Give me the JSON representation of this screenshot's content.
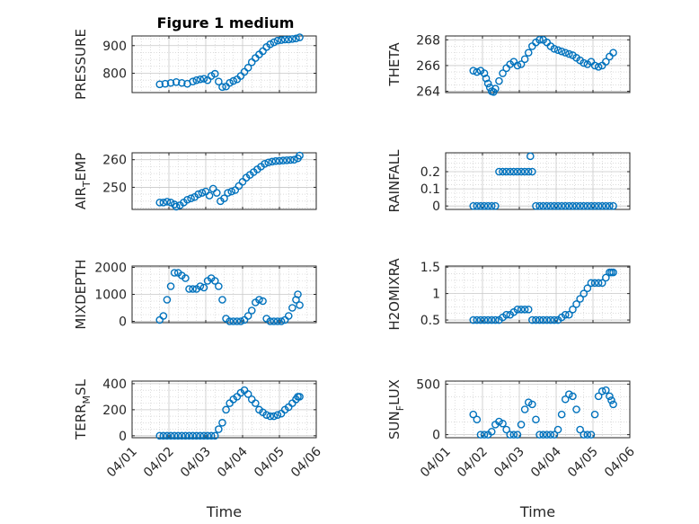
{
  "figure_title": "Figure 1 medium",
  "colors": {
    "marker": "#0072BD",
    "axes": "#262626",
    "grid": "#c8c8c8",
    "plot_bg": "#ffffff"
  },
  "chart_data": [
    {
      "type": "scatter",
      "ylabel": "PRESSURE",
      "ylim": [
        730,
        935
      ],
      "yticks": [
        800,
        900
      ],
      "xlim": [
        1,
        6
      ],
      "xticks": [
        1,
        2,
        3,
        4,
        5,
        6
      ],
      "xticklabels": [
        "04/01",
        "04/02",
        "04/03",
        "04/04",
        "04/05",
        "04/06"
      ],
      "xlabel": "",
      "grid": true,
      "marker": "circle",
      "x": [
        1.75,
        1.9,
        2.05,
        2.2,
        2.35,
        2.5,
        2.65,
        2.75,
        2.85,
        2.95,
        3.05,
        3.15,
        3.25,
        3.35,
        3.45,
        3.55,
        3.65,
        3.75,
        3.85,
        3.95,
        4.05,
        4.15,
        4.25,
        4.35,
        4.45,
        4.55,
        4.65,
        4.75,
        4.85,
        4.95,
        5.05,
        5.15,
        5.25,
        5.35,
        5.45,
        5.55
      ],
      "y": [
        760,
        762,
        765,
        768,
        765,
        762,
        770,
        775,
        778,
        780,
        775,
        790,
        798,
        770,
        750,
        752,
        765,
        772,
        778,
        790,
        805,
        820,
        840,
        855,
        868,
        880,
        895,
        905,
        912,
        918,
        920,
        922,
        922,
        924,
        926,
        930
      ]
    },
    {
      "type": "scatter",
      "ylabel": "THETA",
      "ylim": [
        263.9,
        268.3
      ],
      "yticks": [
        264,
        266,
        268
      ],
      "xlim": [
        1,
        6
      ],
      "xticks": [
        1,
        2,
        3,
        4,
        5,
        6
      ],
      "xticklabels": [
        "04/01",
        "04/02",
        "04/03",
        "04/04",
        "04/05",
        "04/06"
      ],
      "xlabel": "",
      "grid": true,
      "marker": "circle",
      "x": [
        1.75,
        1.85,
        1.95,
        2.05,
        2.1,
        2.15,
        2.2,
        2.25,
        2.3,
        2.35,
        2.45,
        2.55,
        2.65,
        2.75,
        2.85,
        2.95,
        3.05,
        3.15,
        3.25,
        3.35,
        3.45,
        3.55,
        3.65,
        3.75,
        3.85,
        3.95,
        4.05,
        4.15,
        4.25,
        4.35,
        4.45,
        4.55,
        4.65,
        4.75,
        4.85,
        4.95,
        5.05,
        5.15,
        5.25,
        5.35,
        5.45,
        5.55
      ],
      "y": [
        265.6,
        265.5,
        265.6,
        265.4,
        265.0,
        264.6,
        264.3,
        264.0,
        263.95,
        264.2,
        264.8,
        265.4,
        265.8,
        266.1,
        266.3,
        266.0,
        266.1,
        266.5,
        267.0,
        267.5,
        267.8,
        268.0,
        268.0,
        267.8,
        267.5,
        267.3,
        267.2,
        267.1,
        267.0,
        266.9,
        266.8,
        266.6,
        266.4,
        266.2,
        266.1,
        266.3,
        266.0,
        265.9,
        266.0,
        266.3,
        266.7,
        267.0
      ]
    },
    {
      "type": "scatter",
      "ylabel": "AIR_TEMP",
      "ylim": [
        242,
        262.5
      ],
      "yticks": [
        250,
        260
      ],
      "xlim": [
        1,
        6
      ],
      "xticks": [
        1,
        2,
        3,
        4,
        5,
        6
      ],
      "xticklabels": [
        "04/01",
        "04/02",
        "04/03",
        "04/04",
        "04/05",
        "04/06"
      ],
      "xlabel": "",
      "grid": true,
      "marker": "circle",
      "x": [
        1.75,
        1.85,
        1.95,
        2.05,
        2.15,
        2.2,
        2.3,
        2.4,
        2.5,
        2.6,
        2.7,
        2.8,
        2.9,
        3.0,
        3.1,
        3.2,
        3.3,
        3.4,
        3.5,
        3.6,
        3.7,
        3.8,
        3.9,
        4.0,
        4.1,
        4.2,
        4.3,
        4.4,
        4.5,
        4.6,
        4.7,
        4.8,
        4.9,
        5.0,
        5.1,
        5.2,
        5.3,
        5.4,
        5.5,
        5.55
      ],
      "y": [
        244.5,
        244.5,
        244.8,
        244.5,
        243.8,
        243.0,
        243.5,
        244.5,
        245.5,
        246.0,
        246.5,
        247.5,
        248.0,
        248.5,
        247.0,
        249.5,
        248.0,
        245.0,
        246.0,
        248.0,
        248.5,
        249.0,
        250.5,
        252.0,
        253.5,
        254.5,
        255.5,
        256.5,
        257.5,
        258.5,
        259.0,
        259.3,
        259.5,
        259.6,
        259.7,
        259.8,
        259.9,
        260.0,
        260.5,
        261.5
      ]
    },
    {
      "type": "scatter",
      "ylabel": "RAINFALL",
      "ylim": [
        -0.02,
        0.31
      ],
      "yticks": [
        0,
        0.1,
        0.2
      ],
      "yticklabels": [
        "0",
        "0.1",
        "0.2"
      ],
      "xlim": [
        1,
        6
      ],
      "xticks": [
        1,
        2,
        3,
        4,
        5,
        6
      ],
      "xticklabels": [
        "04/01",
        "04/02",
        "04/03",
        "04/04",
        "04/05",
        "04/06"
      ],
      "xlabel": "",
      "grid": true,
      "marker": "circle",
      "x": [
        1.75,
        1.85,
        1.95,
        2.05,
        2.15,
        2.25,
        2.35,
        2.45,
        2.55,
        2.65,
        2.75,
        2.85,
        2.95,
        3.05,
        3.15,
        3.25,
        3.3,
        3.35,
        3.45,
        3.55,
        3.65,
        3.75,
        3.85,
        3.95,
        4.05,
        4.15,
        4.25,
        4.35,
        4.45,
        4.55,
        4.65,
        4.75,
        4.85,
        4.95,
        5.05,
        5.15,
        5.25,
        5.35,
        5.45,
        5.55
      ],
      "y": [
        0,
        0,
        0,
        0,
        0,
        0,
        0,
        0.2,
        0.2,
        0.2,
        0.2,
        0.2,
        0.2,
        0.2,
        0.2,
        0.2,
        0.29,
        0.2,
        0,
        0,
        0,
        0,
        0,
        0,
        0,
        0,
        0,
        0,
        0,
        0,
        0,
        0,
        0,
        0,
        0,
        0,
        0,
        0,
        0,
        0
      ]
    },
    {
      "type": "scatter",
      "ylabel": "MIXDEPTH",
      "ylim": [
        -50,
        2050
      ],
      "yticks": [
        0,
        1000,
        2000
      ],
      "xlim": [
        1,
        6
      ],
      "xticks": [
        1,
        2,
        3,
        4,
        5,
        6
      ],
      "xticklabels": [
        "04/01",
        "04/02",
        "04/03",
        "04/04",
        "04/05",
        "04/06"
      ],
      "xlabel": "",
      "grid": true,
      "marker": "circle",
      "x": [
        1.75,
        1.85,
        1.95,
        2.05,
        2.15,
        2.25,
        2.35,
        2.45,
        2.55,
        2.65,
        2.75,
        2.85,
        2.95,
        3.05,
        3.15,
        3.25,
        3.35,
        3.45,
        3.55,
        3.65,
        3.75,
        3.85,
        3.95,
        4.05,
        4.15,
        4.25,
        4.35,
        4.45,
        4.55,
        4.65,
        4.75,
        4.85,
        4.95,
        5.05,
        5.15,
        5.25,
        5.35,
        5.45,
        5.5,
        5.55
      ],
      "y": [
        50,
        200,
        800,
        1300,
        1800,
        1800,
        1700,
        1600,
        1200,
        1200,
        1200,
        1300,
        1250,
        1500,
        1600,
        1500,
        1300,
        800,
        100,
        0,
        0,
        0,
        0,
        50,
        200,
        400,
        700,
        800,
        750,
        100,
        0,
        0,
        0,
        0,
        50,
        200,
        500,
        800,
        1000,
        600
      ]
    },
    {
      "type": "scatter",
      "ylabel": "H2OMIXRA",
      "ylim": [
        0.45,
        1.52
      ],
      "yticks": [
        0.5,
        1,
        1.5
      ],
      "yticklabels": [
        "0.5",
        "1",
        "1.5"
      ],
      "xlim": [
        1,
        6
      ],
      "xticks": [
        1,
        2,
        3,
        4,
        5,
        6
      ],
      "xticklabels": [
        "04/01",
        "04/02",
        "04/03",
        "04/04",
        "04/05",
        "04/06"
      ],
      "xlabel": "",
      "grid": true,
      "marker": "circle",
      "x": [
        1.75,
        1.85,
        1.95,
        2.05,
        2.15,
        2.25,
        2.35,
        2.45,
        2.55,
        2.65,
        2.75,
        2.85,
        2.95,
        3.05,
        3.15,
        3.25,
        3.35,
        3.45,
        3.55,
        3.65,
        3.75,
        3.85,
        3.95,
        4.05,
        4.15,
        4.25,
        4.35,
        4.45,
        4.55,
        4.65,
        4.75,
        4.85,
        4.95,
        5.05,
        5.15,
        5.25,
        5.35,
        5.45,
        5.5,
        5.55
      ],
      "y": [
        0.5,
        0.5,
        0.5,
        0.5,
        0.5,
        0.5,
        0.5,
        0.5,
        0.55,
        0.6,
        0.6,
        0.65,
        0.7,
        0.7,
        0.7,
        0.7,
        0.5,
        0.5,
        0.5,
        0.5,
        0.5,
        0.5,
        0.5,
        0.5,
        0.55,
        0.6,
        0.6,
        0.7,
        0.8,
        0.9,
        1.0,
        1.1,
        1.2,
        1.2,
        1.2,
        1.2,
        1.3,
        1.4,
        1.4,
        1.4
      ]
    },
    {
      "type": "scatter",
      "ylabel": "TERR_MSL",
      "ylim": [
        -15,
        420
      ],
      "yticks": [
        0,
        200,
        400
      ],
      "xlim": [
        1,
        6
      ],
      "xticks": [
        1,
        2,
        3,
        4,
        5,
        6
      ],
      "xticklabels": [
        "04/01",
        "04/02",
        "04/03",
        "04/04",
        "04/05",
        "04/06"
      ],
      "xlabel": "Time",
      "grid": true,
      "marker": "circle",
      "x": [
        1.75,
        1.85,
        1.95,
        2.05,
        2.15,
        2.25,
        2.35,
        2.45,
        2.55,
        2.65,
        2.75,
        2.85,
        2.95,
        3.05,
        3.15,
        3.25,
        3.35,
        3.45,
        3.55,
        3.65,
        3.75,
        3.85,
        3.95,
        4.05,
        4.15,
        4.25,
        4.35,
        4.45,
        4.55,
        4.65,
        4.75,
        4.85,
        4.95,
        5.05,
        5.15,
        5.25,
        5.35,
        5.45,
        5.5,
        5.55
      ],
      "y": [
        0,
        0,
        0,
        0,
        0,
        0,
        0,
        0,
        0,
        0,
        0,
        0,
        0,
        0,
        0,
        0,
        50,
        100,
        200,
        250,
        280,
        300,
        330,
        350,
        320,
        280,
        250,
        200,
        180,
        160,
        150,
        150,
        160,
        170,
        200,
        220,
        250,
        280,
        300,
        300
      ]
    },
    {
      "type": "scatter",
      "ylabel": "SUN_FLUX",
      "ylim": [
        -30,
        530
      ],
      "yticks": [
        0,
        500
      ],
      "xlim": [
        1,
        6
      ],
      "xticks": [
        1,
        2,
        3,
        4,
        5,
        6
      ],
      "xticklabels": [
        "04/01",
        "04/02",
        "04/03",
        "04/04",
        "04/05",
        "04/06"
      ],
      "xlabel": "Time",
      "grid": true,
      "marker": "circle",
      "x": [
        1.75,
        1.85,
        1.95,
        2.05,
        2.15,
        2.25,
        2.35,
        2.45,
        2.55,
        2.65,
        2.75,
        2.85,
        2.95,
        3.05,
        3.15,
        3.25,
        3.35,
        3.45,
        3.55,
        3.65,
        3.75,
        3.85,
        3.95,
        4.05,
        4.15,
        4.25,
        4.35,
        4.45,
        4.55,
        4.65,
        4.75,
        4.85,
        4.95,
        5.05,
        5.15,
        5.25,
        5.35,
        5.45,
        5.5,
        5.55
      ],
      "y": [
        200,
        150,
        0,
        0,
        0,
        30,
        100,
        130,
        110,
        50,
        0,
        0,
        0,
        100,
        250,
        320,
        300,
        150,
        0,
        0,
        0,
        0,
        0,
        50,
        200,
        350,
        400,
        380,
        250,
        50,
        0,
        0,
        0,
        200,
        380,
        430,
        440,
        380,
        340,
        300
      ]
    }
  ]
}
